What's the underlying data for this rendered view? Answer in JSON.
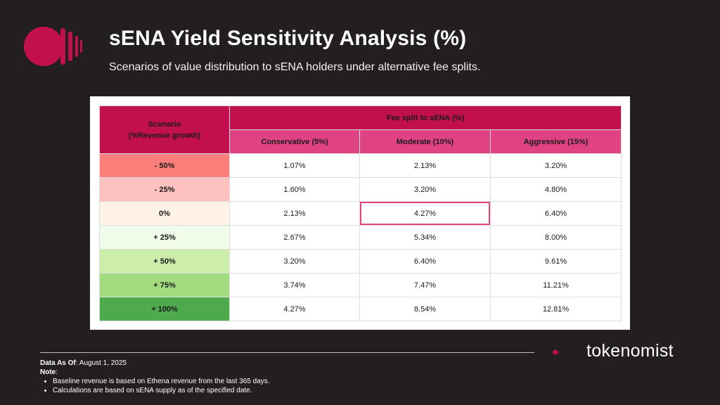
{
  "header": {
    "title": "sENA Yield Sensitivity Analysis (%)",
    "subtitle": "Scenarios of value distribution to sENA holders under alternative fee splits."
  },
  "colors": {
    "background": "#231f20",
    "accent": "#c2104f",
    "accent_light": "#e04383",
    "highlight_border": "#e0467f"
  },
  "chart_data": {
    "type": "table",
    "row_header_title": "Scenario",
    "row_header_subtitle": "(%Revenue growth)",
    "column_group_label": "Fee split to sENA (%)",
    "columns": [
      "Conservative (5%)",
      "Moderate (10%)",
      "Aggressive (15%)"
    ],
    "rows": [
      {
        "scenario": "- 50%",
        "color": "#fc7f7c",
        "values": [
          "1.07%",
          "2.13%",
          "3.20%"
        ]
      },
      {
        "scenario": "- 25%",
        "color": "#fdc1bf",
        "values": [
          "1.60%",
          "3.20%",
          "4.80%"
        ]
      },
      {
        "scenario": "0%",
        "color": "#fef3e6",
        "values": [
          "2.13%",
          "4.27%",
          "6.40%"
        ]
      },
      {
        "scenario": "+ 25%",
        "color": "#f1fbe9",
        "values": [
          "2.67%",
          "5.34%",
          "8.00%"
        ]
      },
      {
        "scenario": "+ 50%",
        "color": "#cdeeab",
        "values": [
          "3.20%",
          "6.40%",
          "9.61%"
        ]
      },
      {
        "scenario": "+ 75%",
        "color": "#a3dc7e",
        "values": [
          "3.74%",
          "7.47%",
          "11.21%"
        ]
      },
      {
        "scenario": "+ 100%",
        "color": "#4faa4e",
        "values": [
          "4.27%",
          "8.54%",
          "12.81%"
        ]
      }
    ],
    "highlighted_cell": {
      "row": 2,
      "column": 1
    }
  },
  "footer": {
    "date_label": "Data As Of",
    "date_value": ": August 1, 2025",
    "note_label": "Note",
    "note_colon": ":",
    "notes": [
      "Baseline revenue is based on Ethena revenue from the last 365 days.",
      "Calculations are based on sENA supply as of the specified date."
    ]
  },
  "brand": {
    "name": "tokenomist",
    "logo_icon": "tokenomist-logo-icon"
  }
}
